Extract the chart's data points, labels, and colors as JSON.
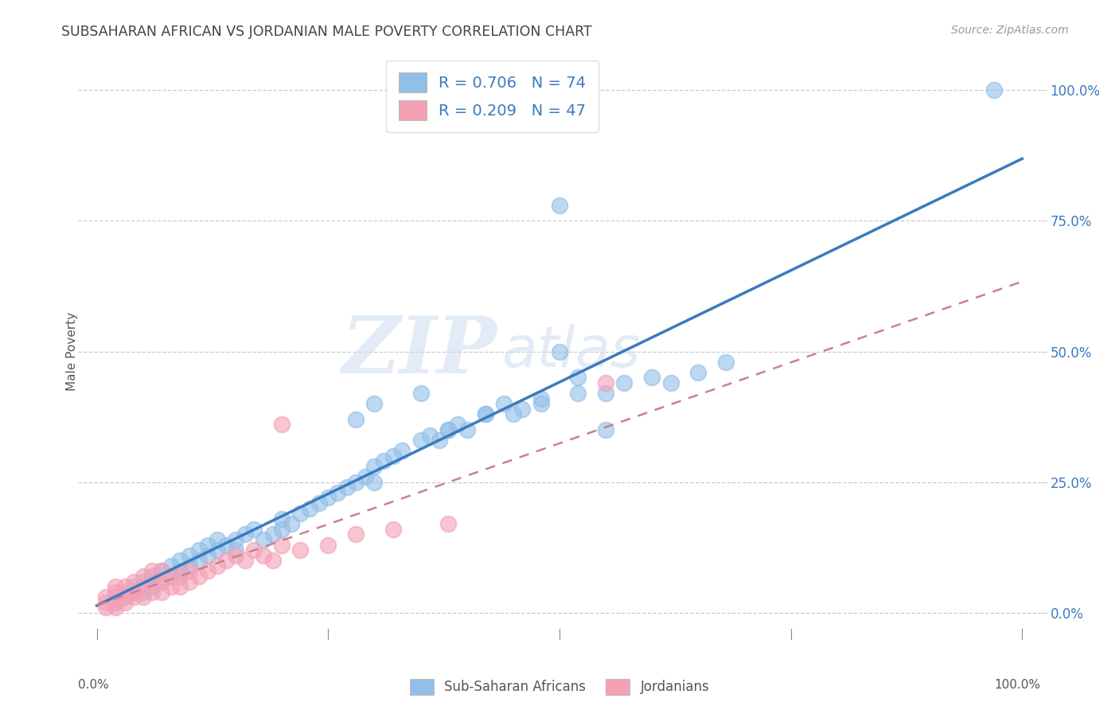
{
  "title": "SUBSAHARAN AFRICAN VS JORDANIAN MALE POVERTY CORRELATION CHART",
  "source": "Source: ZipAtlas.com",
  "ylabel": "Male Poverty",
  "legend_label1": "Sub-Saharan Africans",
  "legend_label2": "Jordanians",
  "r1": "0.706",
  "n1": "74",
  "r2": "0.209",
  "n2": "47",
  "xlim": [
    -0.02,
    1.02
  ],
  "ylim": [
    -0.05,
    1.05
  ],
  "ytick_values": [
    0.0,
    0.25,
    0.5,
    0.75,
    1.0
  ],
  "ytick_labels": [
    "0.0%",
    "25.0%",
    "50.0%",
    "75.0%",
    "100.0%"
  ],
  "xtick_labels_bottom": [
    "0.0%",
    "100.0%"
  ],
  "color_blue": "#92bfe8",
  "color_pink": "#f4a0b5",
  "color_blue_line": "#3a7abf",
  "color_pink_line": "#c98090",
  "watermark_zip": "ZIP",
  "watermark_atlas": "atlas",
  "blue_x": [
    0.97,
    0.02,
    0.03,
    0.04,
    0.04,
    0.05,
    0.05,
    0.06,
    0.06,
    0.07,
    0.07,
    0.08,
    0.08,
    0.09,
    0.09,
    0.1,
    0.1,
    0.11,
    0.11,
    0.12,
    0.12,
    0.13,
    0.13,
    0.14,
    0.15,
    0.15,
    0.16,
    0.17,
    0.18,
    0.19,
    0.2,
    0.2,
    0.21,
    0.22,
    0.23,
    0.24,
    0.25,
    0.26,
    0.27,
    0.28,
    0.29,
    0.3,
    0.3,
    0.31,
    0.32,
    0.33,
    0.35,
    0.36,
    0.37,
    0.38,
    0.39,
    0.4,
    0.42,
    0.44,
    0.46,
    0.48,
    0.5,
    0.52,
    0.55,
    0.57,
    0.45,
    0.48,
    0.52,
    0.55,
    0.6,
    0.62,
    0.65,
    0.68,
    0.5,
    0.35,
    0.28,
    0.3,
    0.38,
    0.42
  ],
  "blue_y": [
    1.0,
    0.02,
    0.03,
    0.04,
    0.05,
    0.04,
    0.06,
    0.05,
    0.07,
    0.06,
    0.08,
    0.07,
    0.09,
    0.08,
    0.1,
    0.09,
    0.11,
    0.1,
    0.12,
    0.11,
    0.13,
    0.12,
    0.14,
    0.13,
    0.12,
    0.14,
    0.15,
    0.16,
    0.14,
    0.15,
    0.16,
    0.18,
    0.17,
    0.19,
    0.2,
    0.21,
    0.22,
    0.23,
    0.24,
    0.25,
    0.26,
    0.25,
    0.28,
    0.29,
    0.3,
    0.31,
    0.33,
    0.34,
    0.33,
    0.35,
    0.36,
    0.35,
    0.38,
    0.4,
    0.39,
    0.41,
    0.5,
    0.45,
    0.42,
    0.44,
    0.38,
    0.4,
    0.42,
    0.35,
    0.45,
    0.44,
    0.46,
    0.48,
    0.78,
    0.42,
    0.37,
    0.4,
    0.35,
    0.38
  ],
  "pink_x": [
    0.01,
    0.01,
    0.01,
    0.02,
    0.02,
    0.02,
    0.02,
    0.02,
    0.03,
    0.03,
    0.03,
    0.03,
    0.04,
    0.04,
    0.04,
    0.05,
    0.05,
    0.05,
    0.06,
    0.06,
    0.06,
    0.07,
    0.07,
    0.07,
    0.08,
    0.08,
    0.09,
    0.09,
    0.1,
    0.1,
    0.11,
    0.12,
    0.13,
    0.14,
    0.15,
    0.16,
    0.17,
    0.18,
    0.19,
    0.2,
    0.22,
    0.25,
    0.28,
    0.32,
    0.38,
    0.55,
    0.2
  ],
  "pink_y": [
    0.01,
    0.02,
    0.03,
    0.01,
    0.02,
    0.03,
    0.04,
    0.05,
    0.02,
    0.03,
    0.04,
    0.05,
    0.03,
    0.04,
    0.06,
    0.03,
    0.05,
    0.07,
    0.04,
    0.06,
    0.08,
    0.04,
    0.06,
    0.08,
    0.05,
    0.07,
    0.05,
    0.07,
    0.06,
    0.08,
    0.07,
    0.08,
    0.09,
    0.1,
    0.11,
    0.1,
    0.12,
    0.11,
    0.1,
    0.13,
    0.12,
    0.13,
    0.15,
    0.16,
    0.17,
    0.44,
    0.36
  ]
}
